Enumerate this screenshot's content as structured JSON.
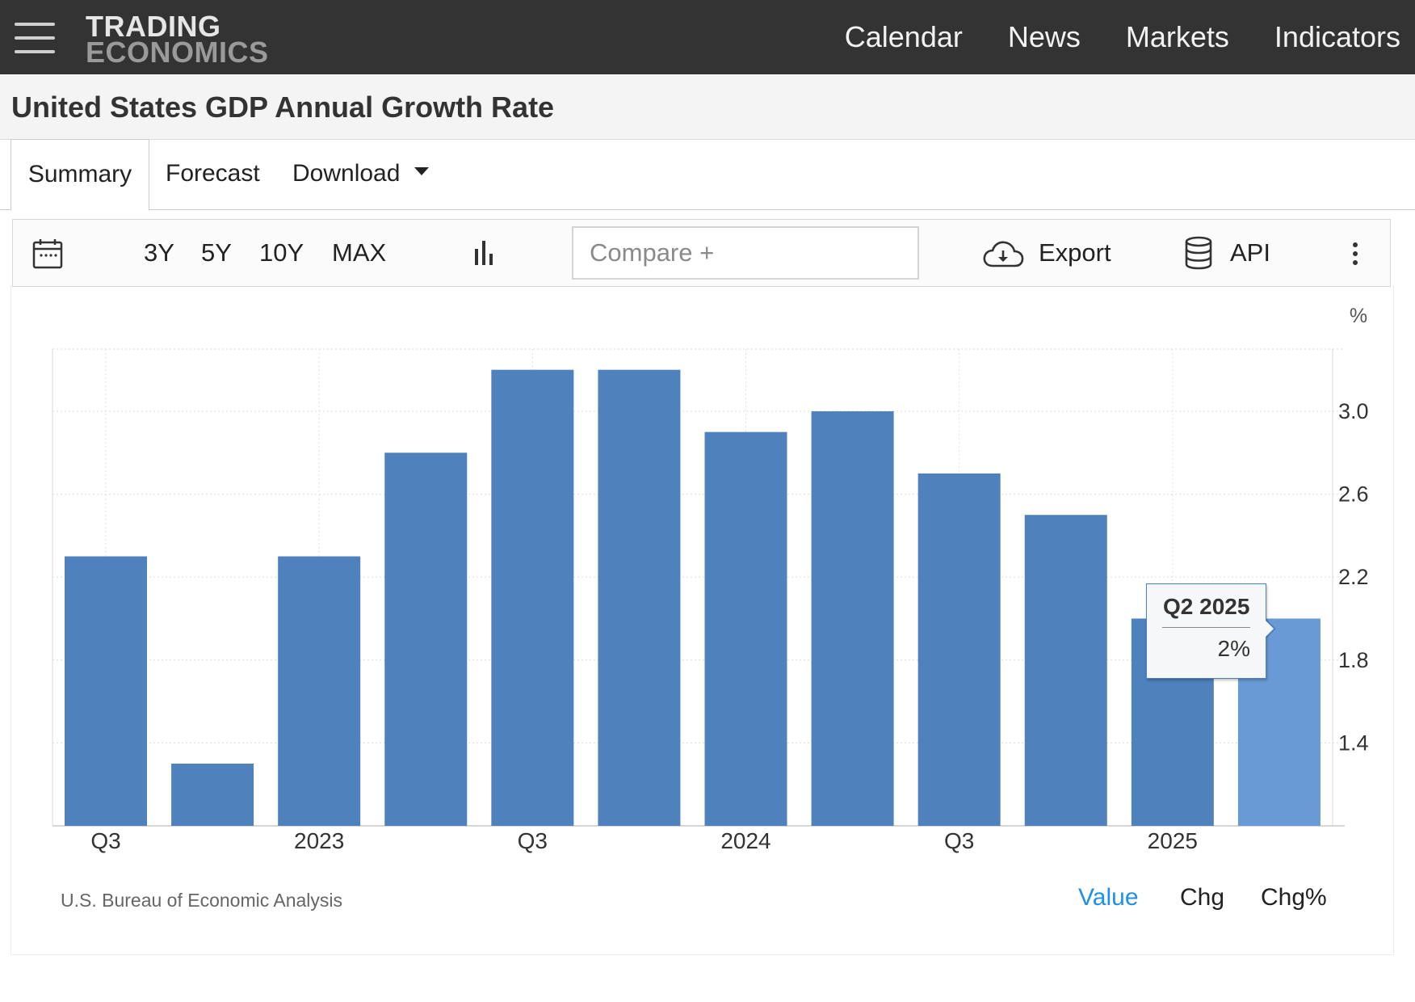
{
  "header": {
    "logo_line1": "TRADING",
    "logo_line2": "ECONOMICS",
    "nav": [
      "Calendar",
      "News",
      "Markets",
      "Indicators"
    ]
  },
  "page": {
    "title": "United States GDP Annual Growth Rate"
  },
  "tabs": [
    {
      "label": "Summary",
      "active": true
    },
    {
      "label": "Forecast",
      "active": false
    },
    {
      "label": "Download",
      "active": false,
      "dropdown": true
    }
  ],
  "toolbar": {
    "ranges": [
      "3Y",
      "5Y",
      "10Y",
      "MAX"
    ],
    "compare_placeholder": "Compare +",
    "export_label": "Export",
    "api_label": "API"
  },
  "chart_data": {
    "type": "bar",
    "unit_label": "%",
    "categories": [
      "Q3 2022",
      "Q4 2022",
      "Q1 2023",
      "Q2 2023",
      "Q3 2023",
      "Q4 2023",
      "Q1 2024",
      "Q2 2024",
      "Q3 2024",
      "Q4 2024",
      "Q1 2025",
      "Q2 2025"
    ],
    "values": [
      2.3,
      1.3,
      2.3,
      2.8,
      3.2,
      3.2,
      2.9,
      3.0,
      2.7,
      2.5,
      2.0,
      2.0
    ],
    "x_tick_labels": [
      "Q3",
      "2023",
      "Q3",
      "2024",
      "Q3",
      "2025"
    ],
    "y_ticks": [
      1.4,
      1.8,
      2.2,
      2.6,
      3.0
    ],
    "ylim": [
      1.0,
      3.3
    ],
    "y_axis_side": "right",
    "highlighted_index": 11,
    "bar_color": "#4f81bd",
    "highlight_color": "#6a9ad6",
    "tooltip": {
      "title": "Q2 2025",
      "value": "2%"
    },
    "source": "U.S. Bureau of Economic Analysis"
  },
  "view_tabs": [
    {
      "label": "Value",
      "active": true,
      "color": "#1e90e8"
    },
    {
      "label": "Chg",
      "active": false
    },
    {
      "label": "Chg%",
      "active": false
    }
  ]
}
